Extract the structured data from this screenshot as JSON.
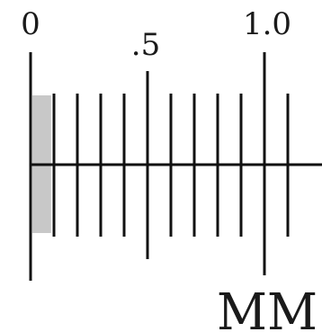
{
  "scale": {
    "min": 0,
    "max": 1.15,
    "minor_step": 0.1,
    "unit": "MM",
    "labels": [
      {
        "value": 0,
        "text": "0"
      },
      {
        "value": 0.5,
        "text": ".5"
      },
      {
        "value": 1.0,
        "text": "1.0"
      }
    ],
    "highlight_range": [
      0,
      0.08
    ],
    "colors": {
      "line": "#111111",
      "highlight": "#c8c8c8",
      "text": "#1a1a1a"
    }
  }
}
